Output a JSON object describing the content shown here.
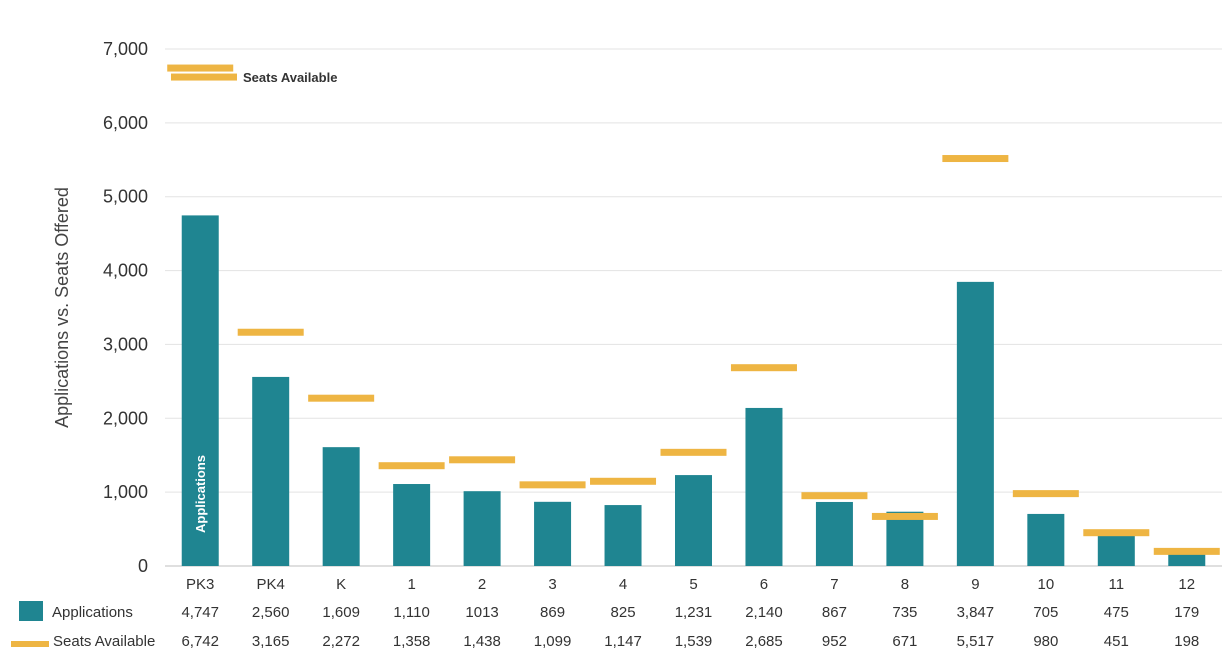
{
  "chart_data": {
    "type": "bar",
    "ylabel": "Applications vs. Seats Offered",
    "ylim": [
      0,
      7000
    ],
    "yticks": [
      "0",
      "1,000",
      "2,000",
      "3,000",
      "4,000",
      "5,000",
      "6,000",
      "7,000"
    ],
    "ytick_values": [
      0,
      1000,
      2000,
      3000,
      4000,
      5000,
      6000,
      7000
    ],
    "grid": "horizontal",
    "categories": [
      "PK3",
      "PK4",
      "K",
      "1",
      "2",
      "3",
      "4",
      "5",
      "6",
      "7",
      "8",
      "9",
      "10",
      "11",
      "12"
    ],
    "series": [
      {
        "name": "Applications",
        "marker": "bar",
        "color": "#1f8591",
        "values": [
          4747,
          2560,
          1609,
          1110,
          1013,
          869,
          825,
          1231,
          2140,
          867,
          735,
          3847,
          705,
          475,
          179
        ],
        "table_labels": [
          "4,747",
          "2,560",
          "1,609",
          "1,110",
          "1013",
          "869",
          "825",
          "1,231",
          "2,140",
          "867",
          "735",
          "3,847",
          "705",
          "475",
          "179"
        ]
      },
      {
        "name": "Seats Available",
        "marker": "dash",
        "color": "#eeb543",
        "values": [
          6742,
          3165,
          2272,
          1358,
          1438,
          1099,
          1147,
          1539,
          2685,
          952,
          671,
          5517,
          980,
          451,
          198
        ],
        "table_labels": [
          "6,742",
          "3,165",
          "2,272",
          "1,358",
          "1,438",
          "1,099",
          "1,147",
          "1,539",
          "2,685",
          "952",
          "671",
          "5,517",
          "980",
          "451",
          "198"
        ]
      }
    ],
    "annotations": {
      "bar_label": "Applications",
      "legend_label": "Seats Available"
    },
    "legend": "data-table-bottom"
  }
}
